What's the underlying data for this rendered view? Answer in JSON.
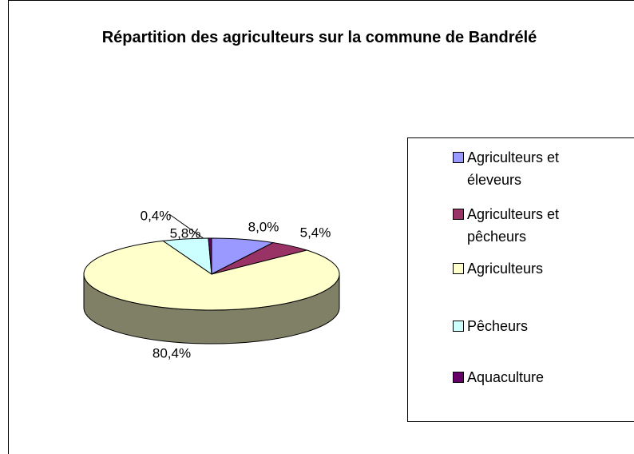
{
  "chart_data": {
    "type": "pie",
    "title": "Répartition des agriculteurs sur la commune de Bandrélé",
    "categories": [
      "Agriculteurs et éleveurs",
      "Agriculteurs et pêcheurs",
      "Agriculteurs",
      "Pêcheurs",
      "Aquaculture"
    ],
    "values": [
      8.0,
      5.4,
      80.4,
      5.8,
      0.4
    ],
    "value_labels": [
      "8,0%",
      "5,4%",
      "80,4%",
      "5,8%",
      "0,4%"
    ],
    "colors": [
      "#9999ff",
      "#993366",
      "#ffffcc",
      "#ccffff",
      "#660066"
    ],
    "legend": "right"
  }
}
